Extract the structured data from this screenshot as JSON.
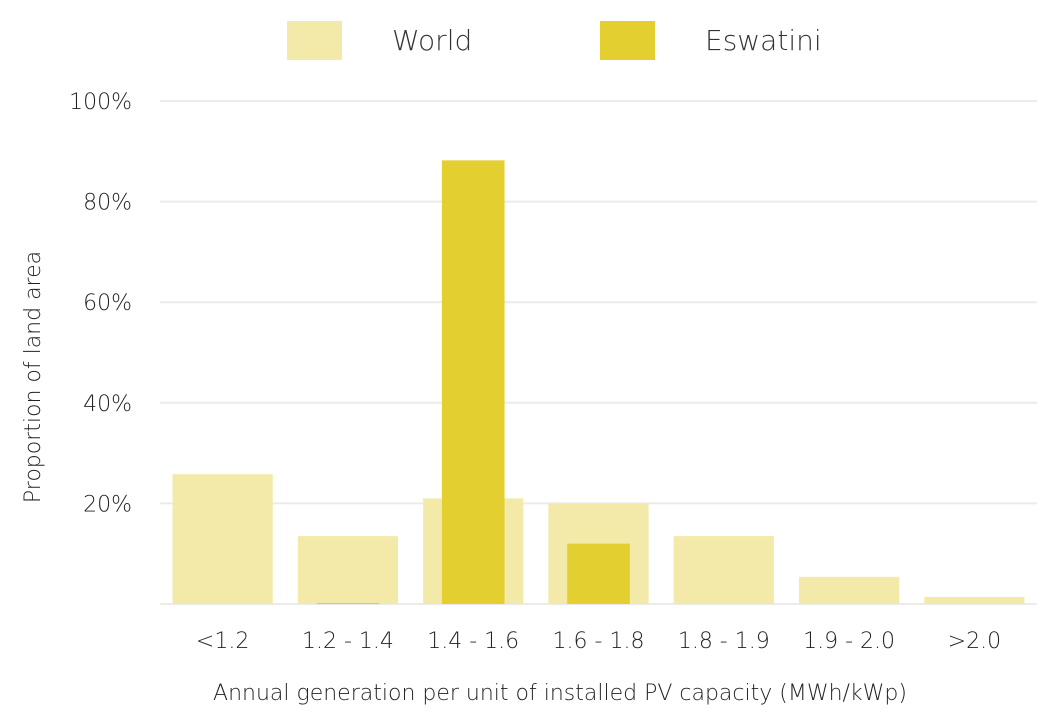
{
  "chart_data": {
    "type": "bar",
    "categories": [
      "<1.2",
      "1.2 - 1.4",
      "1.4 - 1.6",
      "1.6 - 1.8",
      "1.8 - 1.9",
      "1.9 - 2.0",
      ">2.0"
    ],
    "series": [
      {
        "name": "World",
        "values": [
          25.8,
          13.5,
          21.0,
          20.0,
          13.5,
          5.4,
          1.4
        ],
        "color": "#f3eaaa"
      },
      {
        "name": "Eswatini",
        "values": [
          0,
          0.2,
          88.2,
          12.0,
          0,
          0,
          0
        ],
        "color": "#e3cf30"
      }
    ],
    "xlabel": "Annual generation per unit of installed PV capacity (MWh/kWp)",
    "ylabel": "Proportion of land area",
    "ylim": [
      0,
      100
    ],
    "yticks": [
      20,
      40,
      60,
      80,
      100
    ],
    "ytick_labels": [
      "20%",
      "40%",
      "60%",
      "80%",
      "100%"
    ],
    "grid": true,
    "legend": "top"
  }
}
